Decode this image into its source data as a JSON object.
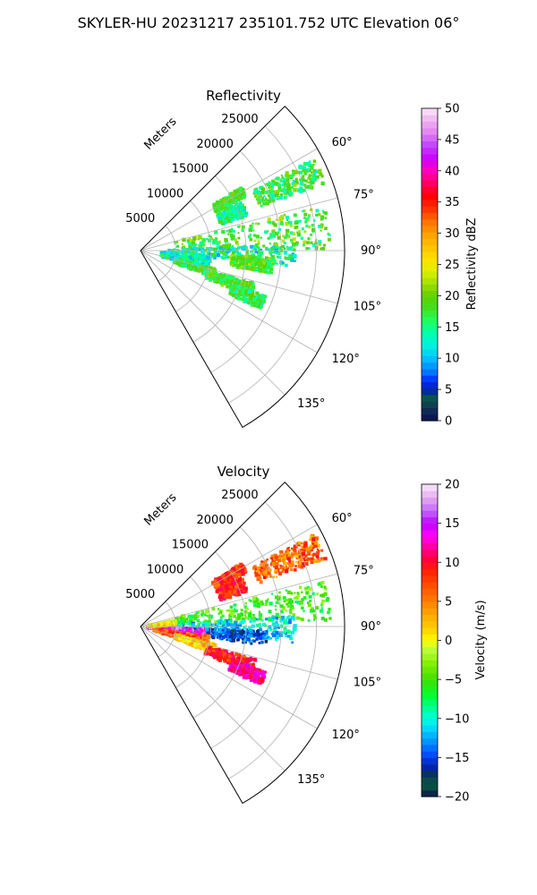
{
  "suptitle": "SKYLER-HU  20231217  235101.752 UTC Elevation 06°",
  "radial_unit_label": "Meters",
  "chart_data": [
    {
      "type": "polar-sector",
      "title": "Reflectivity",
      "theta_range_deg": [
        45,
        150
      ],
      "r_max": 29000,
      "r_ticks": [
        5000,
        10000,
        15000,
        20000,
        25000
      ],
      "theta_ticks_deg": [
        60,
        75,
        90,
        105,
        120,
        135
      ],
      "grid": true,
      "colorbar": {
        "label": "Reflectivity dBZ",
        "min": 0,
        "max": 50,
        "ticks": [
          0,
          5,
          10,
          15,
          20,
          25,
          30,
          35,
          40,
          45,
          50
        ],
        "stops": [
          [
            0,
            "#0a1050"
          ],
          [
            2,
            "#10305a"
          ],
          [
            3.5,
            "#0a5a40"
          ],
          [
            5,
            "#0020b0"
          ],
          [
            6.5,
            "#0030ff"
          ],
          [
            8,
            "#0080ff"
          ],
          [
            10,
            "#00c0ff"
          ],
          [
            12,
            "#00f0e0"
          ],
          [
            14,
            "#00ffb0"
          ],
          [
            16,
            "#20ff60"
          ],
          [
            18,
            "#40e020"
          ],
          [
            20,
            "#60d000"
          ],
          [
            22,
            "#a0e000"
          ],
          [
            24,
            "#e0f000"
          ],
          [
            26,
            "#ffe000"
          ],
          [
            28,
            "#ffc000"
          ],
          [
            30,
            "#ffa000"
          ],
          [
            32,
            "#ff7000"
          ],
          [
            34,
            "#ff3000"
          ],
          [
            36,
            "#ff0000"
          ],
          [
            38,
            "#ff0060"
          ],
          [
            40,
            "#ff00c0"
          ],
          [
            42,
            "#d000ff"
          ],
          [
            44,
            "#c040ff"
          ],
          [
            46,
            "#e080f0"
          ],
          [
            48,
            "#f0b0f0"
          ],
          [
            50,
            "#fbe8fb"
          ]
        ]
      },
      "echo_regions": [
        {
          "theta": [
            62,
            70
          ],
          "r": [
            18000,
            28000
          ],
          "value": 17,
          "spread": 5
        },
        {
          "theta": [
            64,
            72
          ],
          "r": [
            12000,
            16000
          ],
          "value": 15,
          "spread": 4
        },
        {
          "theta": [
            76,
            90
          ],
          "r": [
            5000,
            27000
          ],
          "value": 18,
          "spread": 5
        },
        {
          "theta": [
            88,
            96
          ],
          "r": [
            4000,
            22000
          ],
          "value": 14,
          "spread": 5
        },
        {
          "theta": [
            93,
            100
          ],
          "r": [
            13000,
            19000
          ],
          "value": 19,
          "spread": 4
        },
        {
          "theta": [
            95,
            106
          ],
          "r": [
            3000,
            10000
          ],
          "value": 13,
          "spread": 4
        },
        {
          "theta": [
            103,
            110
          ],
          "r": [
            5000,
            11000
          ],
          "value": 17,
          "spread": 4
        },
        {
          "theta": [
            106,
            113
          ],
          "r": [
            10000,
            17000
          ],
          "value": 18,
          "spread": 4
        },
        {
          "theta": [
            110,
            116
          ],
          "r": [
            14000,
            19000
          ],
          "value": 17,
          "spread": 4
        },
        {
          "theta": [
            58,
            63
          ],
          "r": [
            12000,
            17000
          ],
          "value": 18,
          "spread": 3
        }
      ]
    },
    {
      "type": "polar-sector",
      "title": "Velocity",
      "theta_range_deg": [
        45,
        150
      ],
      "r_max": 29000,
      "r_ticks": [
        5000,
        10000,
        15000,
        20000,
        25000
      ],
      "theta_ticks_deg": [
        60,
        75,
        90,
        105,
        120,
        135
      ],
      "grid": true,
      "colorbar": {
        "label": "Velocity (m/s)",
        "min": -20,
        "max": 20,
        "ticks": [
          -20,
          -15,
          -10,
          -5,
          0,
          5,
          10,
          15,
          20
        ],
        "stops": [
          [
            -20,
            "#0a1050"
          ],
          [
            -18.5,
            "#0a5a40"
          ],
          [
            -17,
            "#0a3060"
          ],
          [
            -16,
            "#0020c0"
          ],
          [
            -14.5,
            "#0050ff"
          ],
          [
            -13,
            "#0090ff"
          ],
          [
            -11.5,
            "#00d0ff"
          ],
          [
            -10,
            "#00ffe0"
          ],
          [
            -8.5,
            "#00ff90"
          ],
          [
            -7,
            "#00ff30"
          ],
          [
            -5,
            "#40e000"
          ],
          [
            -3,
            "#80f000"
          ],
          [
            -1,
            "#c0ff40"
          ],
          [
            0,
            "#ffff00"
          ],
          [
            1.5,
            "#ffd000"
          ],
          [
            3,
            "#ffb000"
          ],
          [
            5,
            "#ff8000"
          ],
          [
            7,
            "#ff5000"
          ],
          [
            9,
            "#ff2000"
          ],
          [
            10.5,
            "#ff0040"
          ],
          [
            12,
            "#ff00a0"
          ],
          [
            13.5,
            "#ff00ff"
          ],
          [
            15,
            "#c000ff"
          ],
          [
            16.5,
            "#c060ff"
          ],
          [
            18,
            "#e0a0f0"
          ],
          [
            20,
            "#fbe8fb"
          ]
        ]
      },
      "echo_regions": [
        {
          "theta": [
            62,
            70
          ],
          "r": [
            18000,
            28000
          ],
          "value": 6,
          "spread": 4
        },
        {
          "theta": [
            64,
            72
          ],
          "r": [
            12000,
            16000
          ],
          "value": 9,
          "spread": 3
        },
        {
          "theta": [
            76,
            88
          ],
          "r": [
            5000,
            27000
          ],
          "value": -5,
          "spread": 3
        },
        {
          "theta": [
            86,
            96
          ],
          "r": [
            3000,
            22000
          ],
          "value": -11,
          "spread": 3
        },
        {
          "theta": [
            92,
            99
          ],
          "r": [
            5000,
            18000
          ],
          "value": -15,
          "spread": 3
        },
        {
          "theta": [
            92,
            100
          ],
          "r": [
            1000,
            9000
          ],
          "value": 15,
          "spread": 3
        },
        {
          "theta": [
            98,
            108
          ],
          "r": [
            2000,
            10000
          ],
          "value": 7,
          "spread": 3
        },
        {
          "theta": [
            103,
            110
          ],
          "r": [
            5000,
            11000
          ],
          "value": 2,
          "spread": 3
        },
        {
          "theta": [
            106,
            113
          ],
          "r": [
            10000,
            17000
          ],
          "value": 9,
          "spread": 3
        },
        {
          "theta": [
            110,
            116
          ],
          "r": [
            14000,
            19000
          ],
          "value": 12,
          "spread": 3
        },
        {
          "theta": [
            80,
            88
          ],
          "r": [
            1000,
            5000
          ],
          "value": 1,
          "spread": 3
        },
        {
          "theta": [
            58,
            63
          ],
          "r": [
            12000,
            17000
          ],
          "value": 8,
          "spread": 3
        }
      ]
    }
  ]
}
